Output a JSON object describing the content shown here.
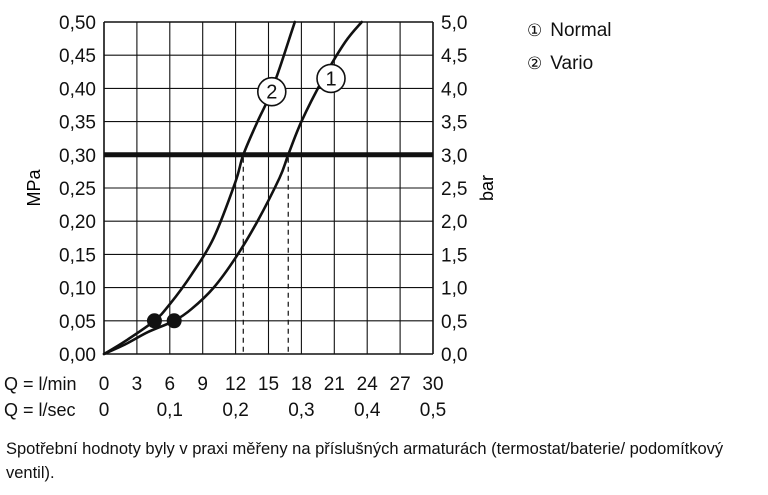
{
  "chart_data": {
    "type": "line",
    "title": "",
    "ylabel": "MPa",
    "ylabel_right": "bar",
    "x_tick_rows": [
      {
        "label": "Q = l/min",
        "ticks": [
          "0",
          "3",
          "6",
          "9",
          "12",
          "15",
          "18",
          "21",
          "24",
          "27",
          "30"
        ],
        "values": [
          0,
          3,
          6,
          9,
          12,
          15,
          18,
          21,
          24,
          27,
          30
        ]
      },
      {
        "label": "Q = l/sec",
        "ticks": [
          "0",
          "0,1",
          "0,2",
          "0,3",
          "0,4",
          "0,5"
        ],
        "values": [
          0,
          6,
          12,
          18,
          24,
          30
        ]
      }
    ],
    "y_ticks": [
      "0,00",
      "0,05",
      "0,10",
      "0,15",
      "0,20",
      "0,25",
      "0,30",
      "0,35",
      "0,40",
      "0,45",
      "0,50"
    ],
    "y_ticks_right": [
      "0,0",
      "0,5",
      "1,0",
      "1,5",
      "2,0",
      "2,5",
      "3,0",
      "3,5",
      "4,0",
      "4,5",
      "5,0"
    ],
    "xlim": [
      0,
      30
    ],
    "ylim": [
      0,
      0.5
    ],
    "grid": true,
    "series": [
      {
        "id": "1",
        "name": "Normal",
        "x": [
          0,
          2,
          4,
          6.4,
          8,
          10,
          12,
          14,
          16,
          16.8,
          18,
          20,
          22,
          23.5
        ],
        "y": [
          0,
          0.015,
          0.033,
          0.05,
          0.068,
          0.1,
          0.145,
          0.2,
          0.265,
          0.3,
          0.35,
          0.415,
          0.47,
          0.5
        ]
      },
      {
        "id": "2",
        "name": "Vario",
        "x": [
          0,
          2,
          4.6,
          6,
          8,
          10,
          12,
          12.7,
          14,
          15,
          16,
          17,
          17.4
        ],
        "y": [
          0,
          0.02,
          0.05,
          0.075,
          0.12,
          0.175,
          0.26,
          0.3,
          0.35,
          0.385,
          0.43,
          0.48,
          0.5
        ]
      }
    ],
    "series_markers": [
      {
        "series": "1",
        "label": "1",
        "x": 20.7,
        "y": 0.415
      },
      {
        "series": "2",
        "label": "2",
        "x": 15.3,
        "y": 0.395
      }
    ],
    "points": [
      {
        "series": "1",
        "x": 6.4,
        "y": 0.05
      },
      {
        "series": "2",
        "x": 4.6,
        "y": 0.05
      }
    ],
    "reference_line": {
      "y": 0.3
    },
    "drop_lines": [
      {
        "series": "1",
        "x": 16.8,
        "y": 0.3
      },
      {
        "series": "2",
        "x": 12.7,
        "y": 0.3
      }
    ],
    "legend": {
      "position": "top-right",
      "entries": [
        {
          "symbol": "①",
          "label": "Normal"
        },
        {
          "symbol": "②",
          "label": "Vario"
        }
      ]
    },
    "footnote": "Spotřební hodnoty byly v praxi měřeny na příslušných armaturách (termostat/baterie/ podomítkový ventil)."
  }
}
